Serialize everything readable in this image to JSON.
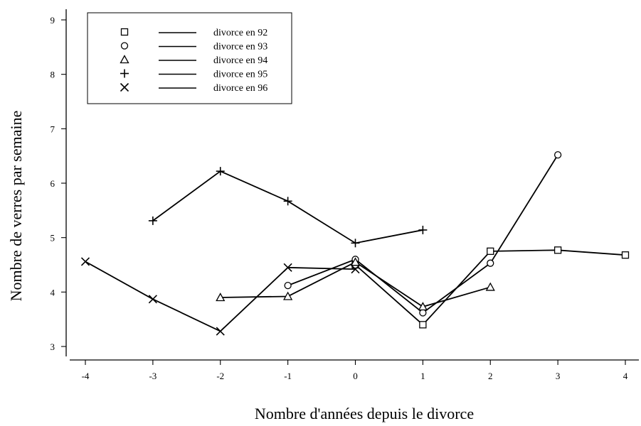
{
  "chart_data": {
    "type": "line",
    "title": "",
    "xlabel": "Nombre d'années depuis le divorce",
    "ylabel": "Nombre de verres par semaine",
    "xlim": [
      -4,
      4
    ],
    "ylim": [
      3,
      9
    ],
    "xticks": [
      -4,
      -3,
      -2,
      -1,
      0,
      1,
      2,
      3,
      4
    ],
    "yticks": [
      3,
      4,
      5,
      6,
      7,
      8,
      9
    ],
    "grid": false,
    "legend_position": "top-left",
    "series": [
      {
        "name": "divorce en 92",
        "marker": "square",
        "points": [
          [
            0,
            4.5
          ],
          [
            1,
            3.4
          ],
          [
            2,
            4.75
          ],
          [
            3,
            4.77
          ],
          [
            4,
            4.68
          ]
        ]
      },
      {
        "name": "divorce en 93",
        "marker": "circle",
        "points": [
          [
            -1,
            4.12
          ],
          [
            0,
            4.6
          ],
          [
            1,
            3.62
          ],
          [
            2,
            4.53
          ],
          [
            3,
            6.52
          ]
        ]
      },
      {
        "name": "divorce en 94",
        "marker": "triangle",
        "points": [
          [
            -2,
            3.9
          ],
          [
            -1,
            3.92
          ],
          [
            0,
            4.55
          ],
          [
            1,
            3.73
          ],
          [
            2,
            4.09
          ]
        ]
      },
      {
        "name": "divorce en 95",
        "marker": "plus",
        "points": [
          [
            -3,
            5.31
          ],
          [
            -2,
            6.22
          ],
          [
            -1,
            5.67
          ],
          [
            0,
            4.9
          ],
          [
            1,
            5.14
          ]
        ]
      },
      {
        "name": "divorce en 96",
        "marker": "x",
        "points": [
          [
            -4,
            4.56
          ],
          [
            -3,
            3.87
          ],
          [
            -2,
            3.28
          ],
          [
            -1,
            4.45
          ],
          [
            0,
            4.42
          ]
        ]
      }
    ]
  }
}
